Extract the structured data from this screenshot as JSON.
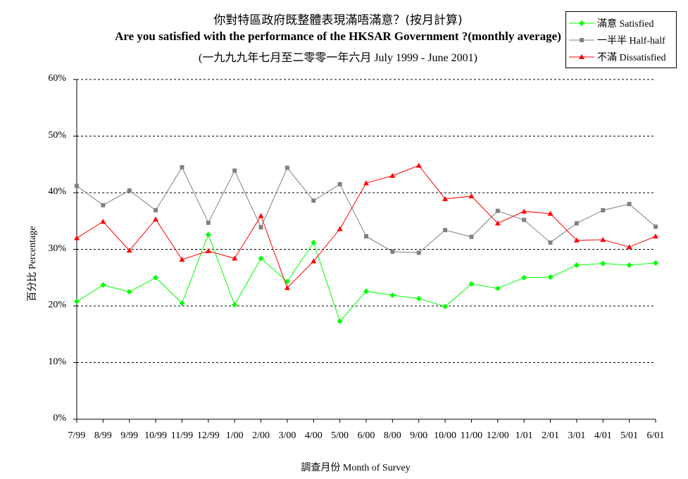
{
  "chart_data": {
    "type": "line",
    "title": "你對特區政府既整體表現滿唔滿意？(按月計算)",
    "subtitle": "Are you satisfied with the performance of the HKSAR Government ?(monthly average)",
    "subtitle2": "(一九九九年七月至二零零一年六月 July 1999 - June 2001)",
    "xlabel": "調查月份 Month of Survey",
    "ylabel": "百分比 Percentage",
    "ylim": [
      0,
      60
    ],
    "yticks": [
      "0%",
      "10%",
      "20%",
      "30%",
      "40%",
      "50%",
      "60%"
    ],
    "grid": true,
    "legend_position": "top-right",
    "categories": [
      "7/99",
      "8/99",
      "9/99",
      "10/99",
      "11/99",
      "12/99",
      "1/00",
      "2/00",
      "3/00",
      "4/00",
      "5/00",
      "6/00",
      "8/00",
      "9/00",
      "10/00",
      "11/00",
      "12/00",
      "1/01",
      "2/01",
      "3/01",
      "4/01",
      "5/01",
      "6/01"
    ],
    "series": [
      {
        "name": "滿意 Satisfied",
        "color": "#00ff00",
        "marker": "diamond",
        "values": [
          20.8,
          23.7,
          22.5,
          25.0,
          20.5,
          32.6,
          20.2,
          28.4,
          24.3,
          31.2,
          17.3,
          22.6,
          21.9,
          21.3,
          19.9,
          23.9,
          23.1,
          25.0,
          25.1,
          27.2,
          27.5,
          27.2,
          27.6
        ]
      },
      {
        "name": "一半半 Half-half",
        "color": "#808080",
        "marker": "square",
        "values": [
          41.2,
          37.8,
          40.4,
          36.9,
          44.5,
          34.7,
          43.9,
          33.9,
          44.4,
          38.6,
          41.5,
          32.3,
          29.6,
          29.4,
          33.4,
          32.2,
          36.8,
          35.2,
          31.2,
          34.6,
          36.9,
          38.0,
          34.0
        ]
      },
      {
        "name": "不滿 Dissatisfied",
        "color": "#ff0000",
        "marker": "triangle",
        "values": [
          32.0,
          34.9,
          29.8,
          35.3,
          28.2,
          29.7,
          28.4,
          35.9,
          23.2,
          27.9,
          33.6,
          41.7,
          43.0,
          44.8,
          38.9,
          39.4,
          34.6,
          36.7,
          36.3,
          31.6,
          31.7,
          30.4,
          32.3
        ]
      }
    ]
  }
}
